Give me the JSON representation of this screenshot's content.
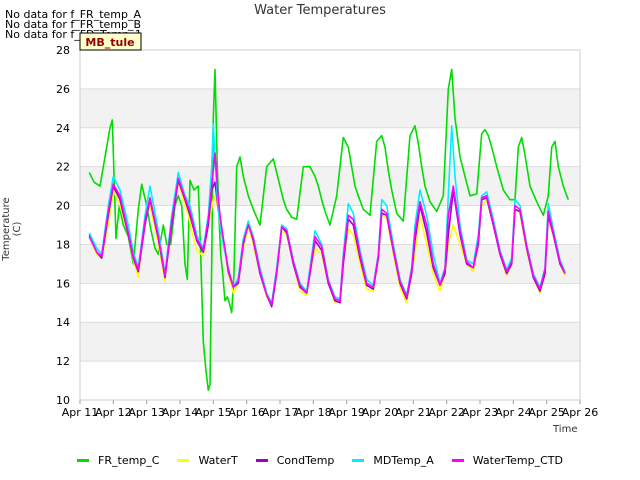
{
  "nodata_lines": [
    "No data for f_FR_temp_A",
    "No data for f_FR_temp_B",
    "No data for f_FD_Temp_1"
  ],
  "badge": "MB_tule",
  "chart_data": {
    "type": "line",
    "title": "Water Temperatures",
    "xlabel": "Time",
    "ylabel": "Temperature (C)",
    "ylim": [
      10,
      28
    ],
    "yticks": [
      10,
      12,
      14,
      16,
      18,
      20,
      22,
      24,
      26,
      28
    ],
    "xlim": [
      "Apr 11",
      "Apr 26"
    ],
    "xticks": [
      "Apr 11",
      "Apr 12",
      "Apr 13",
      "Apr 14",
      "Apr 15",
      "Apr 16",
      "Apr 17",
      "Apr 18",
      "Apr 19",
      "Apr 20",
      "Apr 21",
      "Apr 22",
      "Apr 23",
      "Apr 24",
      "Apr 25",
      "Apr 26"
    ],
    "grid": true,
    "legend_position": "bottom",
    "series": [
      {
        "name": "FR_temp_C",
        "color": "#00dd00",
        "x": [
          0.28,
          0.42,
          0.6,
          0.75,
          0.9,
          0.97,
          1.08,
          1.18,
          1.3,
          1.45,
          1.6,
          1.75,
          1.85,
          2.0,
          2.12,
          2.25,
          2.35,
          2.5,
          2.6,
          2.72,
          2.85,
          2.95,
          3.05,
          3.15,
          3.22,
          3.3,
          3.42,
          3.55,
          3.62,
          3.7,
          3.78,
          3.85,
          3.9,
          3.95,
          4.0,
          4.05,
          4.12,
          4.18,
          4.22,
          4.28,
          4.35,
          4.42,
          4.48,
          4.55,
          4.62,
          4.7,
          4.8,
          4.9,
          5.05,
          5.2,
          5.4,
          5.6,
          5.8,
          6.0,
          6.1,
          6.2,
          6.35,
          6.5,
          6.7,
          6.9,
          7.05,
          7.15,
          7.25,
          7.35,
          7.5,
          7.7,
          7.9,
          8.05,
          8.15,
          8.25,
          8.35,
          8.5,
          8.7,
          8.9,
          9.05,
          9.15,
          9.25,
          9.35,
          9.5,
          9.7,
          9.9,
          10.05,
          10.15,
          10.25,
          10.35,
          10.5,
          10.7,
          10.9,
          11.05,
          11.15,
          11.25,
          11.4,
          11.55,
          11.7,
          11.9,
          12.05,
          12.15,
          12.25,
          12.35,
          12.5,
          12.7,
          12.9,
          13.05,
          13.15,
          13.25,
          13.35,
          13.5,
          13.7,
          13.9,
          14.05,
          14.15,
          14.25,
          14.35,
          14.5,
          14.65
        ],
        "y": [
          21.7,
          21.2,
          21.0,
          22.5,
          24.0,
          24.4,
          18.3,
          20.0,
          19.0,
          18.4,
          17.0,
          19.8,
          21.1,
          20.0,
          18.8,
          17.8,
          17.5,
          19.0,
          18.0,
          18.0,
          20.0,
          20.5,
          20.0,
          17.0,
          16.2,
          21.3,
          20.8,
          21.0,
          17.5,
          13.0,
          11.5,
          10.5,
          10.8,
          17.0,
          24.5,
          27.0,
          22.0,
          19.0,
          17.5,
          16.5,
          15.1,
          15.3,
          15.0,
          14.5,
          16.5,
          22.0,
          22.5,
          21.5,
          20.5,
          19.8,
          19.0,
          22.0,
          22.4,
          21.0,
          20.3,
          19.8,
          19.4,
          19.3,
          22.0,
          22.0,
          21.5,
          21.0,
          20.3,
          19.7,
          19.0,
          20.5,
          23.5,
          23.0,
          22.0,
          21.0,
          20.5,
          19.8,
          19.5,
          23.3,
          23.6,
          23.0,
          21.8,
          20.8,
          19.6,
          19.2,
          23.6,
          24.1,
          23.2,
          22.0,
          21.0,
          20.2,
          19.7,
          20.5,
          26.0,
          27.0,
          24.5,
          22.5,
          21.5,
          20.5,
          20.6,
          23.7,
          23.9,
          23.6,
          23.0,
          22.0,
          20.8,
          20.3,
          20.3,
          23.0,
          23.5,
          22.6,
          21.0,
          20.2,
          19.5,
          20.5,
          23.0,
          23.3,
          22.0,
          21.0,
          20.3
        ]
      },
      {
        "name": "WaterT",
        "color": "#ffff00",
        "x": [
          0.28,
          0.5,
          0.65,
          0.85,
          1.0,
          1.2,
          1.45,
          1.6,
          1.75,
          1.95,
          2.1,
          2.35,
          2.55,
          2.75,
          2.95,
          3.15,
          3.25,
          3.35,
          3.5,
          3.7,
          3.85,
          4.0,
          4.05,
          4.15,
          4.3,
          4.45,
          4.6,
          4.75,
          4.9,
          5.05,
          5.2,
          5.4,
          5.6,
          5.75,
          5.9,
          6.05,
          6.2,
          6.4,
          6.6,
          6.8,
          6.9,
          7.05,
          7.25,
          7.45,
          7.65,
          7.8,
          7.9,
          8.05,
          8.2,
          8.4,
          8.6,
          8.8,
          8.95,
          9.05,
          9.2,
          9.4,
          9.6,
          9.8,
          9.95,
          10.05,
          10.2,
          10.4,
          10.6,
          10.8,
          10.95,
          11.05,
          11.2,
          11.4,
          11.6,
          11.8,
          11.95,
          12.05,
          12.2,
          12.4,
          12.6,
          12.8,
          12.95,
          13.05,
          13.2,
          13.4,
          13.6,
          13.8,
          13.95,
          14.05,
          14.2,
          14.4,
          14.55
        ],
        "y": [
          18.4,
          17.5,
          17.3,
          19.0,
          20.8,
          20.0,
          18.5,
          17.2,
          16.3,
          19.3,
          20.0,
          18.0,
          16.1,
          19.5,
          21.2,
          20.0,
          19.5,
          18.7,
          17.7,
          17.4,
          19.0,
          20.3,
          20.5,
          19.8,
          18.2,
          16.5,
          15.5,
          16.0,
          17.8,
          18.9,
          18.0,
          16.5,
          15.3,
          14.9,
          16.5,
          18.7,
          18.5,
          17.0,
          15.6,
          15.4,
          16.5,
          17.8,
          17.5,
          16.0,
          15.0,
          15.1,
          17.0,
          18.8,
          18.5,
          17.0,
          15.7,
          15.6,
          17.2,
          19.5,
          19.4,
          17.5,
          15.8,
          15.0,
          16.5,
          17.5,
          19.5,
          18.0,
          16.5,
          15.6,
          16.5,
          18.0,
          19.0,
          18.0,
          17.0,
          16.6,
          18.0,
          20.0,
          20.3,
          19.0,
          17.5,
          16.4,
          17.0,
          19.8,
          19.6,
          17.7,
          16.3,
          15.5,
          16.5,
          19.3,
          18.5,
          17.0,
          16.4
        ]
      },
      {
        "name": "CondTemp",
        "color": "#9900cc",
        "x": [
          0.28,
          0.5,
          0.65,
          0.85,
          1.0,
          1.2,
          1.45,
          1.6,
          1.75,
          1.95,
          2.1,
          2.35,
          2.55,
          2.75,
          2.95,
          3.15,
          3.3,
          3.5,
          3.7,
          3.85,
          3.95,
          4.05,
          4.15,
          4.3,
          4.45,
          4.6,
          4.75,
          4.9,
          5.05,
          5.2,
          5.4,
          5.6,
          5.75,
          5.9,
          6.05,
          6.2,
          6.4,
          6.6,
          6.8,
          6.9,
          7.05,
          7.25,
          7.45,
          7.65,
          7.8,
          7.9,
          8.05,
          8.2,
          8.4,
          8.6,
          8.8,
          8.95,
          9.05,
          9.2,
          9.4,
          9.6,
          9.8,
          9.95,
          10.05,
          10.2,
          10.4,
          10.6,
          10.8,
          10.95,
          11.05,
          11.2,
          11.4,
          11.6,
          11.8,
          11.95,
          12.05,
          12.2,
          12.4,
          12.6,
          12.8,
          12.95,
          13.05,
          13.2,
          13.4,
          13.6,
          13.8,
          13.95,
          14.05,
          14.2,
          14.4,
          14.55
        ],
        "y": [
          18.5,
          17.6,
          17.3,
          19.5,
          21.0,
          20.3,
          18.5,
          17.3,
          16.6,
          19.0,
          20.3,
          18.3,
          16.3,
          19.0,
          21.3,
          20.3,
          19.5,
          18.2,
          17.6,
          19.0,
          20.8,
          21.2,
          19.8,
          18.3,
          16.6,
          15.8,
          16.0,
          18.0,
          19.1,
          18.2,
          16.5,
          15.4,
          14.8,
          16.5,
          18.9,
          18.6,
          17.0,
          15.8,
          15.5,
          16.5,
          18.2,
          17.7,
          16.0,
          15.1,
          15.0,
          17.0,
          19.3,
          19.0,
          17.3,
          15.9,
          15.7,
          17.3,
          19.6,
          19.5,
          17.7,
          16.0,
          15.2,
          16.5,
          18.2,
          20.0,
          18.6,
          16.8,
          15.9,
          16.5,
          18.5,
          20.8,
          18.5,
          17.0,
          16.8,
          18.0,
          20.3,
          20.4,
          19.0,
          17.5,
          16.5,
          17.0,
          19.8,
          19.7,
          17.8,
          16.3,
          15.6,
          16.5,
          19.5,
          18.5,
          17.0,
          16.5
        ]
      },
      {
        "name": "MDTemp_A",
        "color": "#00eeff",
        "x": [
          0.28,
          0.5,
          0.65,
          0.85,
          1.0,
          1.2,
          1.45,
          1.6,
          1.75,
          1.95,
          2.1,
          2.35,
          2.55,
          2.75,
          2.95,
          3.15,
          3.3,
          3.5,
          3.7,
          3.85,
          3.95,
          4.0,
          4.05,
          4.12,
          4.2,
          4.3,
          4.45,
          4.6,
          4.75,
          4.9,
          5.05,
          5.2,
          5.4,
          5.6,
          5.75,
          5.9,
          6.05,
          6.2,
          6.4,
          6.6,
          6.8,
          6.9,
          7.05,
          7.25,
          7.45,
          7.65,
          7.8,
          7.9,
          8.05,
          8.2,
          8.4,
          8.6,
          8.8,
          8.95,
          9.05,
          9.2,
          9.4,
          9.6,
          9.8,
          9.95,
          10.05,
          10.2,
          10.4,
          10.6,
          10.8,
          10.95,
          11.05,
          11.15,
          11.25,
          11.4,
          11.6,
          11.8,
          11.95,
          12.05,
          12.2,
          12.4,
          12.6,
          12.8,
          12.95,
          13.05,
          13.2,
          13.4,
          13.6,
          13.8,
          13.95,
          14.05,
          14.2,
          14.4,
          14.55
        ],
        "y": [
          18.6,
          17.8,
          17.5,
          20.0,
          21.5,
          20.8,
          19.0,
          17.6,
          16.8,
          19.5,
          21.0,
          18.7,
          16.5,
          19.5,
          21.7,
          20.5,
          20.0,
          18.5,
          17.8,
          19.5,
          22.0,
          24.2,
          22.5,
          20.5,
          19.0,
          18.0,
          16.8,
          15.8,
          16.3,
          18.3,
          19.2,
          18.4,
          16.8,
          15.5,
          15.0,
          16.8,
          19.0,
          18.8,
          17.2,
          16.0,
          15.6,
          16.8,
          18.7,
          18.0,
          16.2,
          15.3,
          15.2,
          17.5,
          20.1,
          19.6,
          17.7,
          16.2,
          15.9,
          17.5,
          20.3,
          20.0,
          18.0,
          16.2,
          15.4,
          16.8,
          19.0,
          20.8,
          19.5,
          17.5,
          16.0,
          16.8,
          20.5,
          24.1,
          21.5,
          19.0,
          17.2,
          17.0,
          18.5,
          20.5,
          20.7,
          19.3,
          17.7,
          16.7,
          17.3,
          20.3,
          20.0,
          18.0,
          16.5,
          15.8,
          16.8,
          20.1,
          18.8,
          17.2,
          16.6
        ]
      },
      {
        "name": "WaterTemp_CTD",
        "color": "#ff00ff",
        "x": [
          0.28,
          0.5,
          0.65,
          0.85,
          1.0,
          1.2,
          1.45,
          1.6,
          1.75,
          1.95,
          2.1,
          2.35,
          2.55,
          2.75,
          2.95,
          3.15,
          3.3,
          3.5,
          3.7,
          3.85,
          3.95,
          4.05,
          4.12,
          4.2,
          4.3,
          4.45,
          4.6,
          4.75,
          4.9,
          5.05,
          5.2,
          5.4,
          5.6,
          5.75,
          5.9,
          6.05,
          6.2,
          6.4,
          6.6,
          6.8,
          6.9,
          7.05,
          7.25,
          7.45,
          7.65,
          7.8,
          7.9,
          8.05,
          8.2,
          8.4,
          8.6,
          8.8,
          8.95,
          9.05,
          9.2,
          9.4,
          9.6,
          9.8,
          9.95,
          10.05,
          10.2,
          10.4,
          10.6,
          10.8,
          10.95,
          11.05,
          11.2,
          11.4,
          11.6,
          11.8,
          11.95,
          12.05,
          12.2,
          12.4,
          12.6,
          12.8,
          12.95,
          13.05,
          13.2,
          13.4,
          13.6,
          13.8,
          13.95,
          14.05,
          14.2,
          14.4,
          14.55
        ],
        "y": [
          18.4,
          17.6,
          17.4,
          19.7,
          21.1,
          20.5,
          18.6,
          17.4,
          16.7,
          19.2,
          20.4,
          18.4,
          16.4,
          19.2,
          21.4,
          20.4,
          19.7,
          18.3,
          17.7,
          19.3,
          21.0,
          22.7,
          21.0,
          19.5,
          18.3,
          16.7,
          15.8,
          16.1,
          18.1,
          19.0,
          18.3,
          16.6,
          15.4,
          14.9,
          16.6,
          18.9,
          18.7,
          17.1,
          15.9,
          15.5,
          16.6,
          18.4,
          17.9,
          16.1,
          15.2,
          15.1,
          17.3,
          19.5,
          19.3,
          17.5,
          16.0,
          15.8,
          17.4,
          19.8,
          19.6,
          17.8,
          16.1,
          15.3,
          16.7,
          18.6,
          20.2,
          19.0,
          17.0,
          15.9,
          16.7,
          19.5,
          21.0,
          18.7,
          17.1,
          16.8,
          18.2,
          20.4,
          20.5,
          19.1,
          17.6,
          16.6,
          17.1,
          20.0,
          19.8,
          17.9,
          16.4,
          15.7,
          16.7,
          19.7,
          18.6,
          17.1,
          16.5
        ]
      }
    ]
  }
}
